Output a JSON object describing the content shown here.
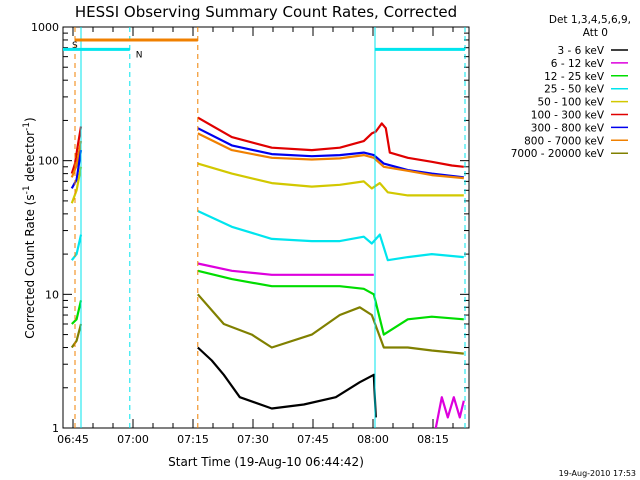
{
  "chart_data": {
    "type": "line",
    "title": "HESSI Observing Summary Count Rates, Corrected",
    "xlabel": "Start Time (19-Aug-10 06:44:42)",
    "ylabel_main": "Corrected Count Rate (s",
    "ylabel_sup1": "-1",
    "ylabel_mid": " detector",
    "ylabel_sup2": "-1",
    "ylabel_end": ")",
    "x_ticks": [
      "06:45",
      "07:00",
      "07:15",
      "07:30",
      "07:45",
      "08:00",
      "08:15"
    ],
    "x_tick_minutes": [
      0.3,
      15.3,
      30.3,
      45.3,
      60.3,
      75.3,
      90.3
    ],
    "xlim_minutes": [
      -2.2,
      99.3
    ],
    "y_scale": "log",
    "ylim": [
      1,
      1000
    ],
    "y_ticks": [
      "1",
      "10",
      "100",
      "1000"
    ],
    "y_tick_values": [
      1,
      10,
      100,
      1000
    ],
    "legend_header": [
      "Det 1,3,4,5,6,9,",
      "Att 0"
    ],
    "legend_position": "right",
    "series": [
      {
        "name": "3 - 6 keV",
        "color": "#000000"
      },
      {
        "name": "6 - 12 keV",
        "color": "#dd00dd"
      },
      {
        "name": "12 - 25 keV",
        "color": "#00dd00"
      },
      {
        "name": "25 - 50 keV",
        "color": "#00e5ee"
      },
      {
        "name": "50 - 100 keV",
        "color": "#d2c800"
      },
      {
        "name": "100 - 300 keV",
        "color": "#e00000"
      },
      {
        "name": "300 - 800 keV",
        "color": "#0000ee"
      },
      {
        "name": "800 - 7000 keV",
        "color": "#f08000"
      },
      {
        "name": "7000 - 20000 keV",
        "color": "#808000"
      }
    ],
    "series_segments": [
      {
        "series": 5,
        "points": [
          [
            0,
            80
          ],
          [
            0.8,
            95
          ],
          [
            1.5,
            130
          ],
          [
            2.3,
            180
          ]
        ]
      },
      {
        "series": 7,
        "points": [
          [
            0,
            75
          ],
          [
            1.2,
            92
          ],
          [
            2.3,
            140
          ]
        ]
      },
      {
        "series": 6,
        "points": [
          [
            0,
            62
          ],
          [
            1.2,
            72
          ],
          [
            2.3,
            120
          ]
        ]
      },
      {
        "series": 4,
        "points": [
          [
            0,
            48
          ],
          [
            1.2,
            60
          ],
          [
            2.3,
            90
          ]
        ]
      },
      {
        "series": 3,
        "points": [
          [
            0,
            18
          ],
          [
            1.2,
            20
          ],
          [
            2.3,
            28
          ]
        ]
      },
      {
        "series": 2,
        "points": [
          [
            0,
            6
          ],
          [
            1.2,
            6.5
          ],
          [
            2.3,
            9
          ]
        ]
      },
      {
        "series": 8,
        "points": [
          [
            0,
            4
          ],
          [
            1.2,
            4.5
          ],
          [
            2.3,
            6
          ]
        ]
      },
      {
        "series": 5,
        "points": [
          [
            31.5,
            210
          ],
          [
            40,
            150
          ],
          [
            50,
            125
          ],
          [
            60,
            120
          ],
          [
            67,
            125
          ],
          [
            73,
            140
          ],
          [
            75,
            160
          ],
          [
            76,
            165
          ],
          [
            77.5,
            190
          ],
          [
            78.5,
            175
          ],
          [
            79.5,
            115
          ],
          [
            84,
            105
          ],
          [
            90,
            98
          ],
          [
            95,
            92
          ],
          [
            98,
            90
          ]
        ]
      },
      {
        "series": 6,
        "points": [
          [
            31.5,
            175
          ],
          [
            40,
            130
          ],
          [
            50,
            112
          ],
          [
            60,
            108
          ],
          [
            67,
            110
          ],
          [
            73,
            115
          ],
          [
            75.5,
            110
          ],
          [
            78,
            95
          ],
          [
            84,
            85
          ],
          [
            90,
            80
          ],
          [
            98,
            75
          ]
        ]
      },
      {
        "series": 7,
        "points": [
          [
            31.5,
            160
          ],
          [
            40,
            120
          ],
          [
            50,
            105
          ],
          [
            60,
            102
          ],
          [
            67,
            104
          ],
          [
            73,
            110
          ],
          [
            75.5,
            105
          ],
          [
            78,
            90
          ],
          [
            84,
            84
          ],
          [
            90,
            78
          ],
          [
            98,
            74
          ]
        ]
      },
      {
        "series": 4,
        "points": [
          [
            31.5,
            95
          ],
          [
            40,
            80
          ],
          [
            50,
            68
          ],
          [
            60,
            64
          ],
          [
            67,
            66
          ],
          [
            73,
            70
          ],
          [
            75,
            62
          ],
          [
            77,
            68
          ],
          [
            79,
            58
          ],
          [
            84,
            55
          ],
          [
            90,
            55
          ],
          [
            98,
            55
          ]
        ]
      },
      {
        "series": 3,
        "points": [
          [
            31.5,
            42
          ],
          [
            40,
            32
          ],
          [
            50,
            26
          ],
          [
            60,
            25
          ],
          [
            67,
            25
          ],
          [
            73,
            27
          ],
          [
            75,
            24
          ],
          [
            77,
            28
          ],
          [
            79,
            18
          ],
          [
            84,
            19
          ],
          [
            90,
            20
          ],
          [
            98,
            19
          ]
        ]
      },
      {
        "series": 1,
        "points": [
          [
            31.5,
            17
          ],
          [
            40,
            15
          ],
          [
            50,
            14
          ],
          [
            60,
            14
          ],
          [
            67,
            14
          ],
          [
            73,
            14
          ],
          [
            75.5,
            14
          ]
        ]
      },
      {
        "series": 2,
        "points": [
          [
            31.5,
            15
          ],
          [
            40,
            13
          ],
          [
            50,
            11.5
          ],
          [
            60,
            11.5
          ],
          [
            67,
            11.5
          ],
          [
            73,
            11
          ],
          [
            75.5,
            10
          ],
          [
            78,
            5
          ],
          [
            84,
            6.5
          ],
          [
            90,
            6.8
          ],
          [
            98,
            6.5
          ]
        ]
      },
      {
        "series": 8,
        "points": [
          [
            31.5,
            10
          ],
          [
            38,
            6
          ],
          [
            45,
            5
          ],
          [
            50,
            4
          ],
          [
            60,
            5
          ],
          [
            67,
            7
          ],
          [
            72,
            8
          ],
          [
            75,
            7
          ],
          [
            78,
            4
          ],
          [
            84,
            4
          ],
          [
            90,
            3.8
          ],
          [
            98,
            3.6
          ]
        ]
      },
      {
        "series": 0,
        "points": [
          [
            31.5,
            4
          ],
          [
            35,
            3.2
          ],
          [
            38,
            2.5
          ],
          [
            42,
            1.7
          ],
          [
            50,
            1.4
          ],
          [
            58,
            1.5
          ],
          [
            66,
            1.7
          ],
          [
            72,
            2.2
          ],
          [
            75.5,
            2.5
          ],
          [
            76,
            1.2
          ]
        ]
      },
      {
        "series": 1,
        "points": [
          [
            91,
            1
          ],
          [
            92.5,
            1.7
          ],
          [
            94,
            1.2
          ],
          [
            95.5,
            1.7
          ],
          [
            97,
            1.2
          ],
          [
            98,
            1.6
          ]
        ]
      }
    ],
    "state_bars": [
      {
        "label": "S",
        "color": "#f08000",
        "start": 0.8,
        "end": 31.5,
        "level": 800
      },
      {
        "label": "N",
        "color": "#00e5ee",
        "start": -2.2,
        "end": 14.5,
        "level": 680
      },
      {
        "label": "",
        "color": "#00e5ee",
        "start": 75.8,
        "end": 98.3,
        "level": 680
      }
    ],
    "vertical_markers": [
      {
        "minute": 0.8,
        "color": "#f08000",
        "style": "dashed"
      },
      {
        "minute": 2.3,
        "color": "#00e5ee",
        "style": "solid"
      },
      {
        "minute": 14.5,
        "color": "#00e5ee",
        "style": "dashed"
      },
      {
        "minute": 31.5,
        "color": "#f08000",
        "style": "dashed"
      },
      {
        "minute": 75.8,
        "color": "#00e5ee",
        "style": "solid"
      },
      {
        "minute": 98.3,
        "color": "#00e5ee",
        "style": "dashed"
      }
    ]
  },
  "footer_timestamp": "19-Aug-2010 17:53"
}
